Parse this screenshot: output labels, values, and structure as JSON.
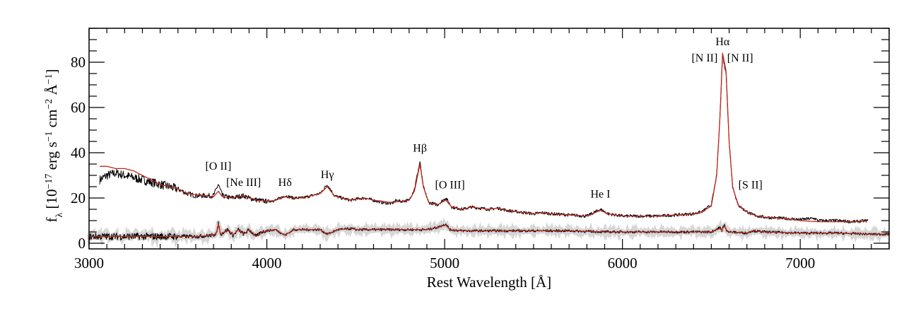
{
  "chart_data": {
    "type": "line",
    "title": "",
    "xlabel": "Rest Wavelength [Å]",
    "ylabel_parts": [
      {
        "t": "f",
        "s": "n"
      },
      {
        "t": "λ",
        "s": "sub"
      },
      {
        "t": " [10",
        "s": "n"
      },
      {
        "t": "−17",
        "s": "sup"
      },
      {
        "t": " erg s",
        "s": "n"
      },
      {
        "t": "−1",
        "s": "sup"
      },
      {
        "t": " cm",
        "s": "n"
      },
      {
        "t": "−2",
        "s": "sup"
      },
      {
        "t": " Å",
        "s": "n"
      },
      {
        "t": "−1",
        "s": "sup"
      },
      {
        "t": "]",
        "s": "n"
      }
    ],
    "xlim": [
      3000,
      7500
    ],
    "ylim": [
      -2.5,
      95
    ],
    "xticks": [
      3000,
      4000,
      5000,
      6000,
      7000
    ],
    "yticks": [
      0,
      20,
      40,
      60,
      80
    ],
    "x_minor_step": 100,
    "y_minor_step": 5,
    "grid": false,
    "colors": {
      "observed": "#000000",
      "model": "#c0281c",
      "error": "#bbbbbb"
    },
    "series": [
      {
        "role": "upper-observed",
        "color": "#000000",
        "x": [
          3060,
          3100,
          3150,
          3200,
          3250,
          3300,
          3350,
          3400,
          3450,
          3500,
          3550,
          3600,
          3650,
          3700,
          3727,
          3750,
          3800,
          3869,
          3900,
          3950,
          4000,
          4050,
          4102,
          4150,
          4200,
          4250,
          4300,
          4340,
          4380,
          4420,
          4470,
          4500,
          4550,
          4600,
          4650,
          4700,
          4730,
          4750,
          4800,
          4830,
          4861,
          4880,
          4910,
          4959,
          5007,
          5040,
          5100,
          5150,
          5200,
          5250,
          5300,
          5350,
          5400,
          5450,
          5500,
          5550,
          5600,
          5700,
          5800,
          5876,
          5920,
          6000,
          6100,
          6200,
          6300,
          6400,
          6450,
          6500,
          6530,
          6548,
          6563,
          6583,
          6600,
          6620,
          6650,
          6680,
          6700,
          6720,
          6760,
          6800,
          6900,
          7000,
          7080,
          7100,
          7200,
          7300,
          7380
        ],
        "y": [
          28,
          30,
          31,
          30,
          29,
          28,
          27,
          26,
          25,
          24,
          22,
          21,
          21,
          21,
          26,
          21,
          20,
          21,
          20,
          19,
          18.5,
          19,
          21,
          20,
          20,
          21,
          22,
          26,
          21,
          20,
          19,
          19.5,
          20,
          19,
          18,
          17.5,
          19,
          18.5,
          19,
          24,
          36,
          25,
          18,
          17,
          20,
          16,
          15,
          16,
          15.5,
          15,
          15.5,
          14.5,
          14,
          13.5,
          13,
          13.5,
          13,
          12.5,
          12,
          15,
          13,
          12,
          12,
          12,
          12.5,
          13,
          14,
          17,
          30,
          55,
          83,
          75,
          45,
          25,
          17,
          15,
          14,
          13,
          12,
          11.5,
          11,
          10.5,
          11,
          10,
          10,
          9.5,
          10
        ]
      },
      {
        "role": "upper-model",
        "color": "#c0281c",
        "x": [
          3060,
          3100,
          3150,
          3200,
          3250,
          3300,
          3350,
          3400,
          3450,
          3500,
          3550,
          3600,
          3650,
          3700,
          3727,
          3750,
          3800,
          3869,
          3900,
          3950,
          4000,
          4050,
          4102,
          4150,
          4200,
          4250,
          4300,
          4340,
          4380,
          4420,
          4470,
          4500,
          4550,
          4600,
          4650,
          4700,
          4750,
          4800,
          4830,
          4861,
          4880,
          4910,
          4959,
          5007,
          5040,
          5100,
          5150,
          5200,
          5250,
          5300,
          5350,
          5400,
          5450,
          5500,
          5550,
          5600,
          5700,
          5800,
          5876,
          5920,
          6000,
          6100,
          6200,
          6300,
          6400,
          6450,
          6500,
          6530,
          6548,
          6563,
          6583,
          6600,
          6620,
          6650,
          6680,
          6700,
          6720,
          6760,
          6800,
          6900,
          7000,
          7100,
          7200,
          7300,
          7380
        ],
        "y": [
          34,
          34,
          33,
          33,
          32,
          30,
          28,
          26,
          25,
          24,
          22,
          21.5,
          21,
          20.5,
          23,
          20.5,
          20,
          21,
          20,
          19,
          18.5,
          19,
          20.5,
          20,
          20,
          21,
          22,
          25,
          21,
          20,
          19,
          19.5,
          20,
          19,
          18.5,
          18,
          18.5,
          19,
          23,
          35,
          25,
          18,
          17,
          19,
          16,
          15,
          16,
          15.5,
          15,
          15.5,
          14.5,
          14,
          13.5,
          13,
          13.5,
          13,
          12.5,
          12,
          14.5,
          13,
          12,
          12,
          12,
          12.5,
          13,
          14,
          16.5,
          30,
          55,
          84,
          76,
          45,
          25,
          17,
          15,
          14,
          13,
          12,
          11.5,
          11,
          10,
          9.5,
          9.5,
          9.5,
          10
        ]
      },
      {
        "role": "lower-observed",
        "color": "#000000",
        "x": [
          3000,
          3100,
          3200,
          3300,
          3400,
          3500,
          3600,
          3700,
          3720,
          3727,
          3740,
          3780,
          3810,
          3840,
          3870,
          3900,
          3940,
          3970,
          4000,
          4050,
          4102,
          4150,
          4200,
          4300,
          4340,
          4400,
          4480,
          4500,
          4600,
          4700,
          4800,
          4900,
          4959,
          5007,
          5030,
          5100,
          5300,
          5500,
          5700,
          5900,
          6100,
          6300,
          6500,
          6548,
          6560,
          6563,
          6575,
          6583,
          6600,
          6700,
          6730,
          6800,
          7000,
          7200,
          7400,
          7500
        ],
        "y": [
          3,
          3,
          3,
          3,
          3,
          3,
          3,
          3.5,
          5,
          9,
          4,
          6,
          3.5,
          6,
          4,
          6,
          3,
          5,
          5.5,
          6,
          3.5,
          6,
          6,
          6,
          4,
          6,
          6.5,
          6,
          6,
          6,
          6,
          6,
          7,
          8.5,
          6,
          5.5,
          5.5,
          5.5,
          5.5,
          5,
          5,
          5,
          5,
          7,
          5.5,
          7,
          8,
          6,
          5,
          4.5,
          5.5,
          5,
          4.5,
          4.5,
          4,
          4
        ]
      },
      {
        "role": "lower-model",
        "color": "#c0281c",
        "x": [
          3000,
          3100,
          3200,
          3300,
          3400,
          3500,
          3600,
          3700,
          3720,
          3727,
          3740,
          3780,
          3810,
          3840,
          3870,
          3900,
          3940,
          3970,
          4000,
          4050,
          4102,
          4150,
          4200,
          4300,
          4340,
          4400,
          4480,
          4500,
          4600,
          4700,
          4800,
          4900,
          4959,
          5007,
          5030,
          5100,
          5300,
          5500,
          5700,
          5900,
          6100,
          6300,
          6500,
          6548,
          6560,
          6563,
          6575,
          6583,
          6600,
          6700,
          6730,
          6800,
          7000,
          7200,
          7400,
          7500
        ],
        "y": [
          3,
          3,
          3,
          3,
          3,
          3,
          3,
          3.5,
          5,
          8.5,
          4,
          6,
          3.5,
          6,
          4,
          6,
          3,
          5,
          5.5,
          6,
          3.5,
          6,
          6,
          6,
          4,
          6,
          6.5,
          6,
          6,
          6,
          6,
          6,
          7,
          8,
          6,
          5.5,
          5.5,
          5.5,
          5.5,
          5,
          5,
          5,
          5,
          6.5,
          5.5,
          6.5,
          7.5,
          6,
          5,
          4.5,
          5.5,
          5,
          4.5,
          4.5,
          4,
          4
        ]
      }
    ],
    "annotations": [
      {
        "text": "[O II]",
        "x": 3727,
        "y": 32.5
      },
      {
        "text": "[Ne III]",
        "x": 3869,
        "y": 25.3
      },
      {
        "text": "Hδ",
        "x": 4102,
        "y": 25.3
      },
      {
        "text": "Hγ",
        "x": 4340,
        "y": 28.8
      },
      {
        "text": "Hβ",
        "x": 4861,
        "y": 40.4
      },
      {
        "text": "[O III]",
        "x": 5030,
        "y": 24.2
      },
      {
        "text": "He I",
        "x": 5876,
        "y": 20.2
      },
      {
        "text": "Hα",
        "x": 6563,
        "y": 87.5
      },
      {
        "text": "[N II]",
        "x": 6462,
        "y": 80.3
      },
      {
        "text": "[N II]",
        "x": 6662,
        "y": 80.3
      },
      {
        "text": "[S II]",
        "x": 6720,
        "y": 24.2
      }
    ]
  }
}
